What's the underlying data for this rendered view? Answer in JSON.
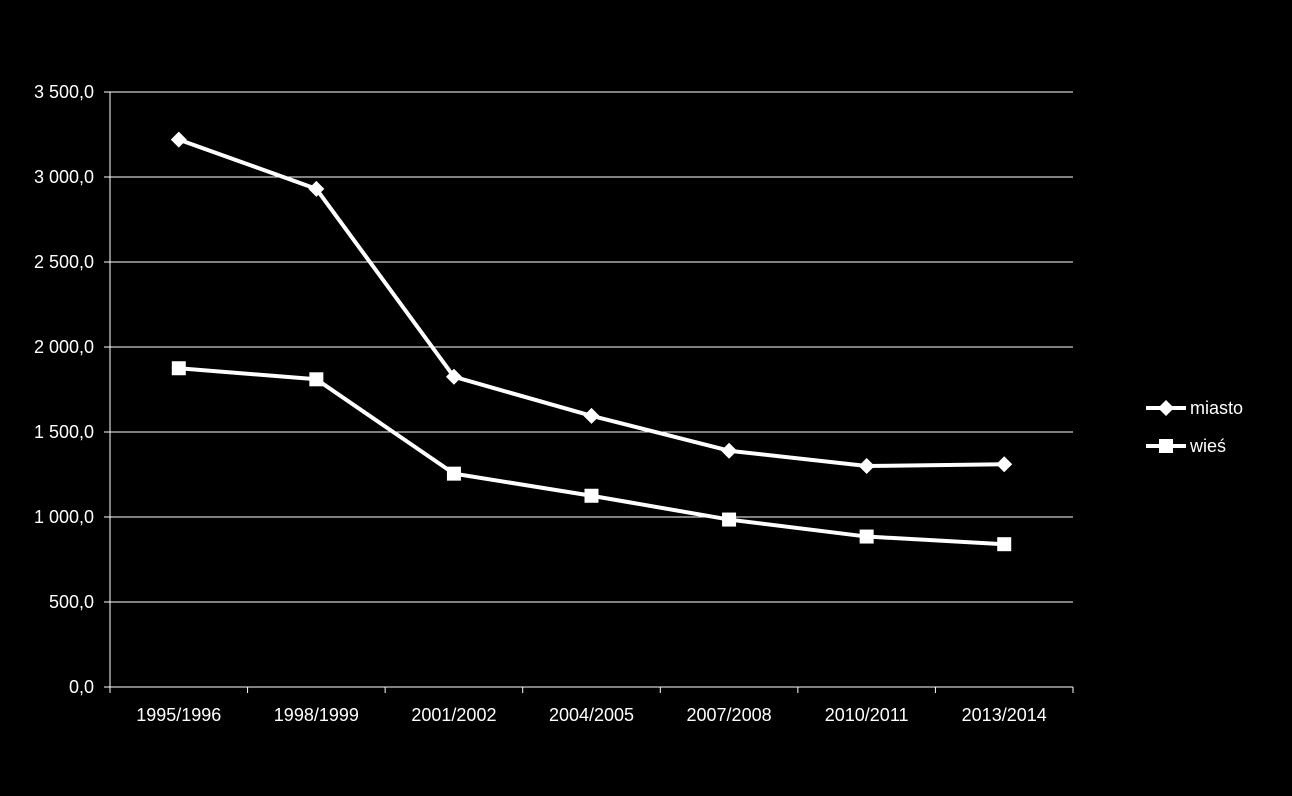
{
  "chart_data": {
    "type": "line",
    "title": "",
    "xlabel": "",
    "ylabel": "",
    "categories": [
      "1995/1996",
      "1998/1999",
      "2001/2002",
      "2004/2005",
      "2007/2008",
      "2010/2011",
      "2013/2014"
    ],
    "ylim": [
      0,
      3500
    ],
    "yticks": [
      0,
      500,
      1000,
      1500,
      2000,
      2500,
      3000,
      3500
    ],
    "ytick_labels": [
      "0,0",
      "500,0",
      "1 000,0",
      "1 500,0",
      "2 000,0",
      "2 500,0",
      "3 000,0",
      "3 500,0"
    ],
    "grid": true,
    "legend_position": "right",
    "series": [
      {
        "name": "miasto",
        "marker": "diamond",
        "values": [
          3220,
          2930,
          1825,
          1595,
          1390,
          1300,
          1310
        ]
      },
      {
        "name": "wieś",
        "marker": "square",
        "values": [
          1875,
          1810,
          1255,
          1125,
          985,
          885,
          840
        ]
      }
    ]
  },
  "colors": {
    "background": "#000000",
    "line": "#ffffff",
    "grid": "#ffffff",
    "text": "#ffffff"
  }
}
